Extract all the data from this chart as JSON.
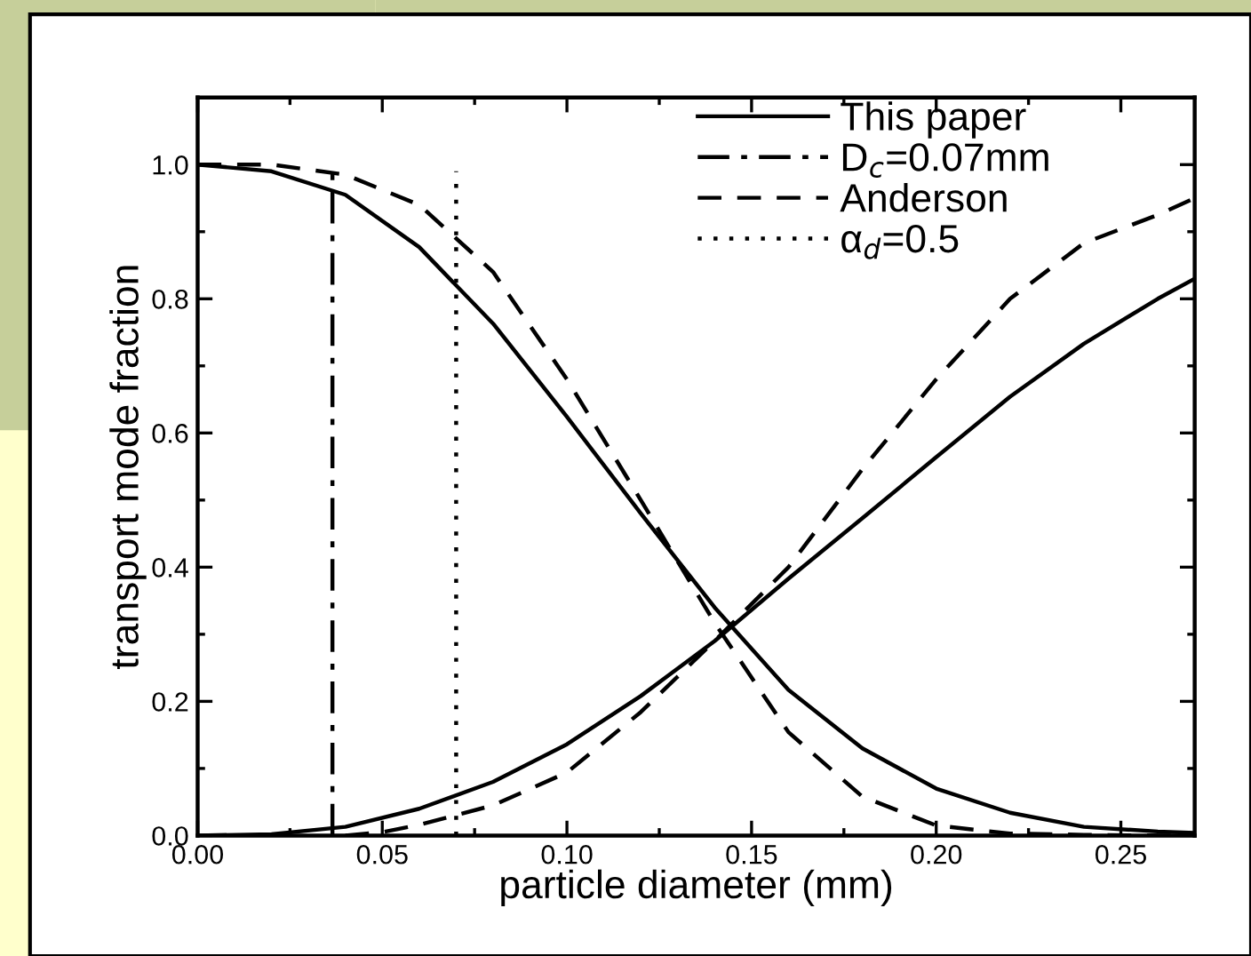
{
  "chart_data": {
    "type": "line",
    "xlabel": "particle diameter (mm)",
    "ylabel": "transport mode fraction",
    "xlim": [
      0,
      0.27
    ],
    "ylim": [
      0,
      1.1
    ],
    "xticks": [
      {
        "value": 0,
        "label": "0.00"
      },
      0.05,
      {
        "value": 0.1,
        "label": "0.10"
      },
      0.15,
      {
        "value": 0.2,
        "label": "0.20"
      },
      0.25
    ],
    "yticks": [
      {
        "value": 0,
        "label": "0.0"
      },
      0.2,
      0.4,
      0.6,
      0.8,
      {
        "value": 1,
        "label": "1.0"
      }
    ],
    "grid": false,
    "legend": "top right",
    "marker": "none",
    "series": [
      {
        "name": "This paper",
        "color": "#000000",
        "line_style": "solid",
        "x": [
          0,
          0.02,
          0.04,
          0.06,
          0.08,
          0.1,
          0.12,
          0.14,
          0.16,
          0.18,
          0.2,
          0.22,
          0.24,
          0.26,
          0.27
        ],
        "values": [
          1.0,
          0.99,
          0.955,
          0.877,
          0.763,
          0.624,
          0.48,
          0.34,
          0.217,
          0.13,
          0.07,
          0.034,
          0.013,
          0.006,
          0.004
        ]
      },
      {
        "color": "#000000",
        "line_style": "solid",
        "x": [
          0,
          0.02,
          0.04,
          0.06,
          0.08,
          0.1,
          0.12,
          0.14,
          0.16,
          0.18,
          0.2,
          0.22,
          0.24,
          0.26,
          0.27
        ],
        "values": [
          0.0,
          0.002,
          0.013,
          0.04,
          0.08,
          0.136,
          0.208,
          0.29,
          0.383,
          0.473,
          0.564,
          0.654,
          0.733,
          0.8,
          0.83
        ]
      },
      {
        "name": "D$_{c}$=0.07mm",
        "color": "#000000",
        "line_style": "dashdot",
        "x": [
          0.0365,
          0.0365
        ],
        "values": [
          0,
          1.0
        ]
      },
      {
        "name": "Anderson",
        "color": "#000000",
        "line_style": "dashed",
        "x": [
          0,
          0.02,
          0.04,
          0.06,
          0.08,
          0.1,
          0.12,
          0.14,
          0.16,
          0.18,
          0.2,
          0.22,
          0.24,
          0.26,
          0.27
        ],
        "values": [
          1.0,
          1.0,
          0.985,
          0.94,
          0.84,
          0.68,
          0.5,
          0.317,
          0.154,
          0.058,
          0.015,
          0.003,
          0.001,
          0.0,
          0.0
        ]
      },
      {
        "color": "#000000",
        "line_style": "dashed",
        "x": [
          0.04,
          0.05,
          0.06,
          0.08,
          0.1,
          0.12,
          0.14,
          0.16,
          0.18,
          0.2,
          0.22,
          0.24,
          0.26,
          0.27
        ],
        "values": [
          0.0,
          0.005,
          0.016,
          0.045,
          0.094,
          0.184,
          0.29,
          0.4,
          0.546,
          0.68,
          0.8,
          0.883,
          0.925,
          0.95
        ]
      },
      {
        "name": "α$_{d}$=0.5",
        "color": "#000000",
        "line_style": "dotted",
        "x": [
          0.07,
          0.07
        ],
        "values": [
          0,
          0.99
        ]
      }
    ]
  }
}
